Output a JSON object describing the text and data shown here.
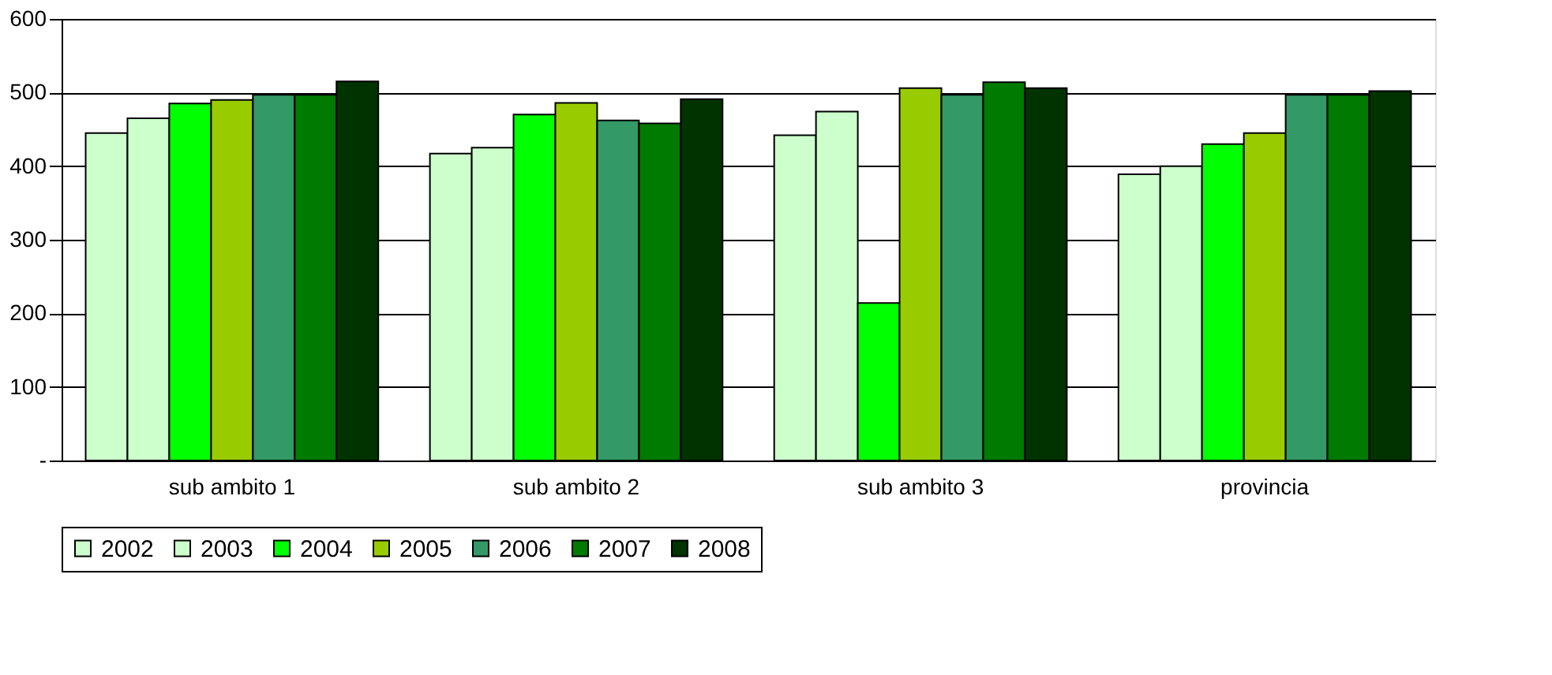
{
  "chart_data": {
    "type": "bar",
    "categories": [
      "sub ambito 1",
      "sub ambito 2",
      "sub ambito 3",
      "provincia"
    ],
    "series": [
      {
        "name": "2002",
        "color": "#ccffcc",
        "values": [
          445,
          417,
          442,
          389
        ]
      },
      {
        "name": "2003",
        "color": "#ccffcc",
        "values": [
          465,
          425,
          474,
          400
        ]
      },
      {
        "name": "2004",
        "color": "#00ff00",
        "values": [
          485,
          470,
          214,
          430
        ]
      },
      {
        "name": "2005",
        "color": "#99cc00",
        "values": [
          490,
          486,
          506,
          445
        ]
      },
      {
        "name": "2006",
        "color": "#339966",
        "values": [
          497,
          462,
          497,
          497
        ]
      },
      {
        "name": "2007",
        "color": "#007a00",
        "values": [
          497,
          458,
          514,
          497
        ]
      },
      {
        "name": "2008",
        "color": "#003300",
        "values": [
          515,
          491,
          506,
          502
        ]
      }
    ],
    "ylim": [
      0,
      600
    ],
    "yticks": [
      {
        "value": 0,
        "label": "-"
      },
      100,
      200,
      300,
      400,
      500,
      600
    ],
    "grid": "y",
    "legend": "bottom"
  }
}
